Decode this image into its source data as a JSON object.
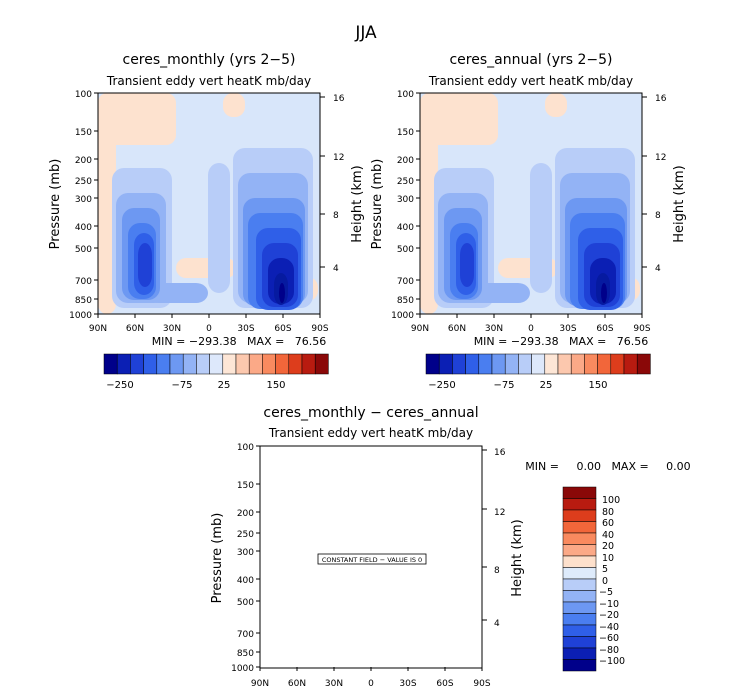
{
  "figure_title": "JJA",
  "chart_data": [
    {
      "type": "heatmap",
      "title": "ceres_monthly (yrs 2−5)",
      "subtitle": "Transient eddy vert heatK mb/day",
      "xlabel": "",
      "ylabel": "Pressure (mb)",
      "y2label": "Height (km)",
      "x_ticks": [
        "90N",
        "60N",
        "30N",
        "0",
        "30S",
        "60S",
        "90S"
      ],
      "y_ticks": [
        "100",
        "150",
        "200",
        "250",
        "300",
        "400",
        "500",
        "700",
        "850",
        "1000"
      ],
      "y2_ticks": [
        "16",
        "12",
        "8",
        "4"
      ],
      "stats": "MIN = −293.38   MAX =   76.56",
      "colorbar": {
        "orientation": "horizontal",
        "labels": [
          "−250",
          "−75",
          "25",
          "150"
        ]
      }
    },
    {
      "type": "heatmap",
      "title": "ceres_annual (yrs 2−5)",
      "subtitle": "Transient eddy vert heatK mb/day",
      "xlabel": "",
      "ylabel": "Pressure (mb)",
      "y2label": "Height (km)",
      "x_ticks": [
        "90N",
        "60N",
        "30N",
        "0",
        "30S",
        "60S",
        "90S"
      ],
      "y_ticks": [
        "100",
        "150",
        "200",
        "250",
        "300",
        "400",
        "500",
        "700",
        "850",
        "1000"
      ],
      "y2_ticks": [
        "16",
        "12",
        "8",
        "4"
      ],
      "stats": "MIN = −293.38   MAX =   76.56",
      "colorbar": {
        "orientation": "horizontal",
        "labels": [
          "−250",
          "−75",
          "25",
          "150"
        ]
      }
    },
    {
      "type": "heatmap",
      "title": "ceres_monthly − ceres_annual",
      "subtitle": "Transient eddy vert heatK mb/day",
      "xlabel": "",
      "ylabel": "Pressure (mb)",
      "y2label": "Height (km)",
      "x_ticks": [
        "90N",
        "60N",
        "30N",
        "0",
        "30S",
        "60S",
        "90S"
      ],
      "y_ticks": [
        "100",
        "150",
        "200",
        "250",
        "300",
        "400",
        "500",
        "700",
        "850",
        "1000"
      ],
      "y2_ticks": [
        "16",
        "12",
        "8",
        "4"
      ],
      "annotation": "CONSTANT FIELD − VALUE IS 0",
      "stats": "MIN =     0.00   MAX =     0.00",
      "colorbar": {
        "orientation": "vertical",
        "labels": [
          "100",
          "80",
          "60",
          "40",
          "20",
          "10",
          "5",
          "0",
          "−5",
          "−10",
          "−20",
          "−40",
          "−60",
          "−80",
          "−100"
        ]
      }
    }
  ],
  "palette": {
    "cb_horizontal": [
      "#00008a",
      "#0b1fb4",
      "#1f41d6",
      "#2f5fe8",
      "#4a7ef0",
      "#6d98f2",
      "#93b3f5",
      "#b8cdf8",
      "#dde8fb",
      "#fde6d6",
      "#fcc8ae",
      "#fba987",
      "#f98a5f",
      "#f2663a",
      "#dd3d1c",
      "#b81b10",
      "#8a0808"
    ],
    "cb_vertical": [
      "#8a0808",
      "#b81b10",
      "#dd3d1c",
      "#f2663a",
      "#f98a5f",
      "#fba987",
      "#fde0cc",
      "#deebfb",
      "#b8cdf8",
      "#93b3f5",
      "#6d98f2",
      "#4a7ef0",
      "#2f5fe8",
      "#1f41d6",
      "#0b1fb4",
      "#00008a"
    ],
    "field_background": "#d8e6fa",
    "field_positive": "#fde2cf"
  }
}
